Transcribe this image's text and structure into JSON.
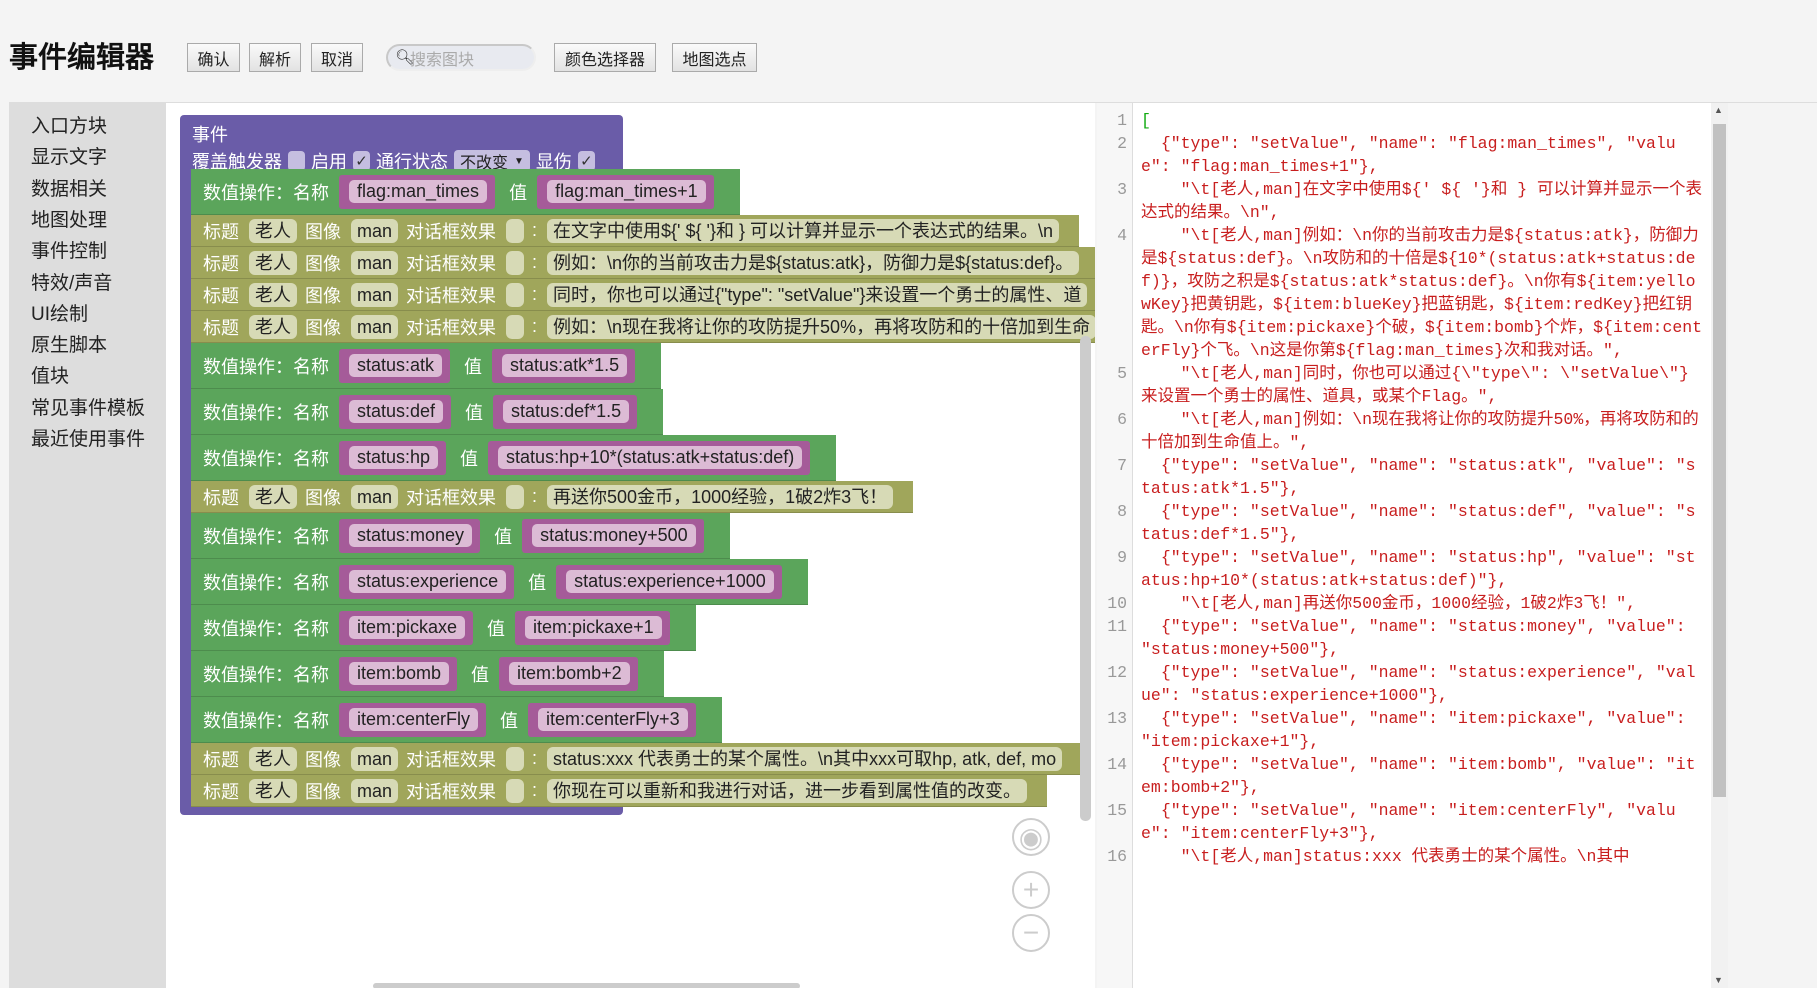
{
  "title": "事件编辑器",
  "toolbar": {
    "confirm": "确认",
    "parse": "解析",
    "cancel": "取消",
    "search_placeholder": "搜索图块",
    "color_picker": "颜色选择器",
    "map_pick": "地图选点"
  },
  "sidebar": {
    "items": [
      "入口方块",
      "显示文字",
      "数据相关",
      "地图处理",
      "事件控制",
      "特效/声音",
      "UI绘制",
      "原生脚本",
      "值块",
      "常见事件模板",
      "最近使用事件"
    ]
  },
  "event": {
    "title": "事件",
    "override_label": "覆盖触发器",
    "override": false,
    "enable_label": "启用",
    "enable": true,
    "pass_label": "通行状态",
    "pass_value": "不改变",
    "show_damage_label": "显伤",
    "show_damage": true
  },
  "labels": {
    "value_op": "数值操作：名称",
    "value": "值",
    "title": "标题",
    "image": "图像",
    "effect": "对话框效果",
    "colon": ":"
  },
  "colors": {
    "event": "#6a5ca8",
    "value_block": "#5ba55b",
    "dialog_block": "#a0a65b",
    "string": "#c81e1e"
  },
  "blocks": [
    {
      "type": "value",
      "name": "flag:man_times",
      "value": "flag:man_times+1"
    },
    {
      "type": "dialog",
      "title": "老人",
      "image": "man",
      "text": "在文字中使用${' ${ '}和 } 可以计算并显示一个表达式的结果。\\n"
    },
    {
      "type": "dialog",
      "title": "老人",
      "image": "man",
      "text": "例如：\\n你的当前攻击力是${status:atk}，防御力是${status:def}。"
    },
    {
      "type": "dialog",
      "title": "老人",
      "image": "man",
      "text": "同时，你也可以通过{\"type\": \"setValue\"}来设置一个勇士的属性、道"
    },
    {
      "type": "dialog",
      "title": "老人",
      "image": "man",
      "text": "例如：\\n现在我将让你的攻防提升50%，再将攻防和的十倍加到生命"
    },
    {
      "type": "value",
      "name": "status:atk",
      "value": "status:atk*1.5"
    },
    {
      "type": "value",
      "name": "status:def",
      "value": "status:def*1.5"
    },
    {
      "type": "value",
      "name": "status:hp",
      "value": "status:hp+10*(status:atk+status:def)"
    },
    {
      "type": "dialog",
      "title": "老人",
      "image": "man",
      "text": "再送你500金币，1000经验，1破2炸3飞！"
    },
    {
      "type": "value",
      "name": "status:money",
      "value": "status:money+500"
    },
    {
      "type": "value",
      "name": "status:experience",
      "value": "status:experience+1000"
    },
    {
      "type": "value",
      "name": "item:pickaxe",
      "value": "item:pickaxe+1"
    },
    {
      "type": "value",
      "name": "item:bomb",
      "value": "item:bomb+2"
    },
    {
      "type": "value",
      "name": "item:centerFly",
      "value": "item:centerFly+3"
    },
    {
      "type": "dialog",
      "title": "老人",
      "image": "man",
      "text": "status:xxx 代表勇士的某个属性。\\n其中xxx可取hp, atk, def, mo"
    },
    {
      "type": "dialog",
      "title": "老人",
      "image": "man",
      "text": "你现在可以重新和我进行对话，进一步看到属性值的改变。"
    }
  ],
  "code": [
    {
      "n": "1",
      "t": "["
    },
    {
      "n": "2",
      "t": "  {\"type\": \"setValue\", \"name\": \"flag:man_times\", \"value\": \"flag:man_times+1\"},"
    },
    {
      "n": "3",
      "t": "    \"\\t[老人,man]在文字中使用${' ${ '}和 } 可以计算并显示一个表达式的结果。\\n\","
    },
    {
      "n": "4",
      "t": "    \"\\t[老人,man]例如：\\n你的当前攻击力是${status:atk}，防御力是${status:def}。\\n攻防和的十倍是${10*(status:atk+status:def)}，攻防之积是${status:atk*status:def}。\\n你有${item:yellowKey}把黄钥匙，${item:blueKey}把蓝钥匙，${item:redKey}把红钥匙。\\n你有${item:pickaxe}个破，${item:bomb}个炸，${item:centerFly}个飞。\\n这是你第${flag:man_times}次和我对话。\","
    },
    {
      "n": "5",
      "t": "    \"\\t[老人,man]同时，你也可以通过{\\\"type\\\": \\\"setValue\\\"}来设置一个勇士的属性、道具，或某个Flag。\","
    },
    {
      "n": "6",
      "t": "    \"\\t[老人,man]例如：\\n现在我将让你的攻防提升50%，再将攻防和的十倍加到生命值上。\","
    },
    {
      "n": "7",
      "t": "  {\"type\": \"setValue\", \"name\": \"status:atk\", \"value\": \"status:atk*1.5\"},"
    },
    {
      "n": "8",
      "t": "  {\"type\": \"setValue\", \"name\": \"status:def\", \"value\": \"status:def*1.5\"},"
    },
    {
      "n": "9",
      "t": "  {\"type\": \"setValue\", \"name\": \"status:hp\", \"value\": \"status:hp+10*(status:atk+status:def)\"},"
    },
    {
      "n": "10",
      "t": "    \"\\t[老人,man]再送你500金币，1000经验，1破2炸3飞！\","
    },
    {
      "n": "11",
      "t": "  {\"type\": \"setValue\", \"name\": \"status:money\", \"value\": \"status:money+500\"},"
    },
    {
      "n": "12",
      "t": "  {\"type\": \"setValue\", \"name\": \"status:experience\", \"value\": \"status:experience+1000\"},"
    },
    {
      "n": "13",
      "t": "  {\"type\": \"setValue\", \"name\": \"item:pickaxe\", \"value\": \"item:pickaxe+1\"},"
    },
    {
      "n": "14",
      "t": "  {\"type\": \"setValue\", \"name\": \"item:bomb\", \"value\": \"item:bomb+2\"},"
    },
    {
      "n": "15",
      "t": "  {\"type\": \"setValue\", \"name\": \"item:centerFly\", \"value\": \"item:centerFly+3\"},"
    },
    {
      "n": "16",
      "t": "    \"\\t[老人,man]status:xxx 代表勇士的某个属性。\\n其中"
    }
  ]
}
